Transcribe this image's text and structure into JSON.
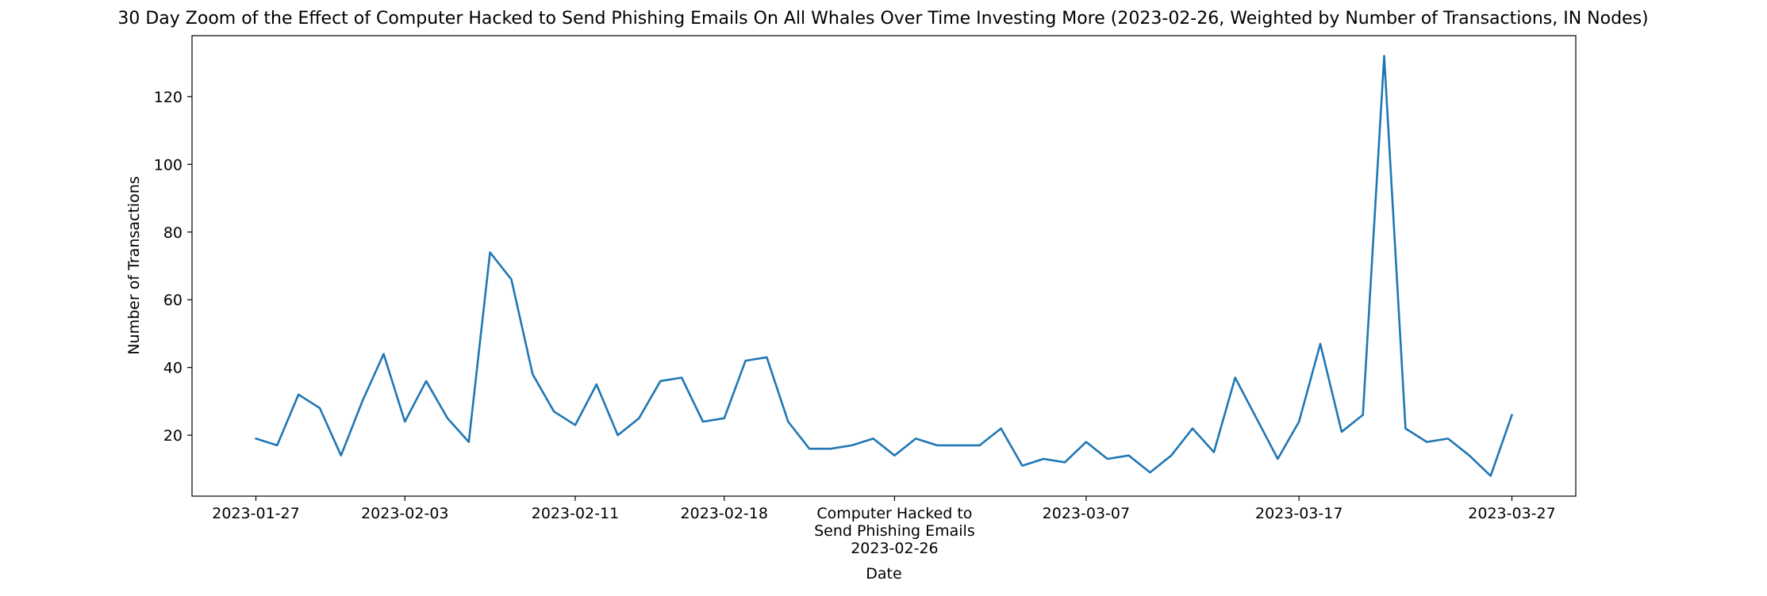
{
  "chart_data": {
    "type": "line",
    "title": "30 Day Zoom of the Effect of Computer Hacked to Send Phishing Emails On All Whales Over Time Investing More (2023-02-26, Weighted by Number of Transactions, IN Nodes)",
    "xlabel": "Date",
    "ylabel": "Number of Transactions",
    "xlim": [
      "2023-01-24",
      "2023-03-30"
    ],
    "ylim": [
      2,
      138
    ],
    "yticks": [
      20,
      40,
      60,
      80,
      100,
      120
    ],
    "xticks": [
      {
        "date": "2023-01-27",
        "label": "2023-01-27"
      },
      {
        "date": "2023-02-03",
        "label": "2023-02-03"
      },
      {
        "date": "2023-02-11",
        "label": "2023-02-11"
      },
      {
        "date": "2023-02-18",
        "label": "2023-02-18"
      },
      {
        "date": "2023-02-26",
        "label": "Computer Hacked to\nSend Phishing Emails\n2023-02-26"
      },
      {
        "date": "2023-03-07",
        "label": "2023-03-07"
      },
      {
        "date": "2023-03-17",
        "label": "2023-03-17"
      },
      {
        "date": "2023-03-27",
        "label": "2023-03-27"
      }
    ],
    "grid": false,
    "series": [
      {
        "color": "#1f77b4",
        "x": [
          "2023-01-27",
          "2023-01-28",
          "2023-01-29",
          "2023-01-30",
          "2023-01-31",
          "2023-02-01",
          "2023-02-02",
          "2023-02-03",
          "2023-02-04",
          "2023-02-05",
          "2023-02-06",
          "2023-02-07",
          "2023-02-08",
          "2023-02-09",
          "2023-02-10",
          "2023-02-11",
          "2023-02-12",
          "2023-02-13",
          "2023-02-14",
          "2023-02-15",
          "2023-02-16",
          "2023-02-17",
          "2023-02-18",
          "2023-02-19",
          "2023-02-20",
          "2023-02-21",
          "2023-02-22",
          "2023-02-23",
          "2023-02-24",
          "2023-02-25",
          "2023-02-26",
          "2023-02-27",
          "2023-02-28",
          "2023-03-01",
          "2023-03-02",
          "2023-03-03",
          "2023-03-04",
          "2023-03-05",
          "2023-03-06",
          "2023-03-07",
          "2023-03-08",
          "2023-03-09",
          "2023-03-10",
          "2023-03-11",
          "2023-03-12",
          "2023-03-13",
          "2023-03-14",
          "2023-03-15",
          "2023-03-16",
          "2023-03-17",
          "2023-03-18",
          "2023-03-19",
          "2023-03-20",
          "2023-03-21",
          "2023-03-22",
          "2023-03-23",
          "2023-03-24",
          "2023-03-25",
          "2023-03-26",
          "2023-03-27"
        ],
        "y": [
          19,
          17,
          32,
          28,
          14,
          30,
          44,
          24,
          36,
          25,
          18,
          74,
          66,
          38,
          27,
          23,
          35,
          20,
          25,
          36,
          37,
          24,
          25,
          42,
          43,
          24,
          16,
          16,
          17,
          19,
          14,
          19,
          17,
          17,
          17,
          22,
          11,
          13,
          12,
          18,
          13,
          14,
          9,
          14,
          22,
          15,
          37,
          25,
          13,
          24,
          47,
          21,
          26,
          132,
          22,
          18,
          19,
          14,
          8,
          26
        ]
      }
    ]
  }
}
